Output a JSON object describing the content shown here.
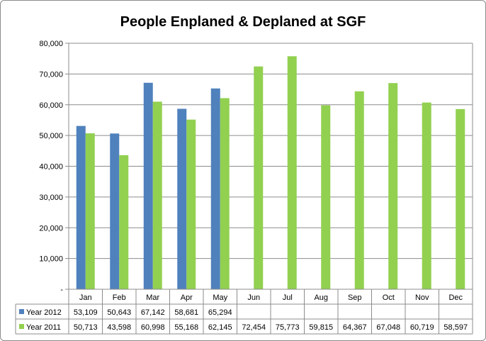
{
  "chart_data": {
    "type": "bar",
    "title": "People Enplaned & Deplaned at SGF",
    "categories": [
      "Jan",
      "Feb",
      "Mar",
      "Apr",
      "May",
      "Jun",
      "Jul",
      "Aug",
      "Sep",
      "Oct",
      "Nov",
      "Dec"
    ],
    "yticks": [
      "-",
      "10,000",
      "20,000",
      "30,000",
      "40,000",
      "50,000",
      "60,000",
      "70,000",
      "80,000"
    ],
    "ylim": [
      0,
      80000
    ],
    "grid": true,
    "legend": "data-table",
    "series": [
      {
        "name": "Year 2012",
        "color": "#4f81bd",
        "values": [
          53109,
          50643,
          67142,
          58681,
          65294,
          null,
          null,
          null,
          null,
          null,
          null,
          null
        ],
        "labels": [
          "53,109",
          "50,643",
          "67,142",
          "58,681",
          "65,294",
          "",
          "",
          "",
          "",
          "",
          "",
          ""
        ]
      },
      {
        "name": "Year 2011",
        "color": "#92d050",
        "values": [
          50713,
          43598,
          60998,
          55168,
          62145,
          72454,
          75773,
          59815,
          64367,
          67048,
          60719,
          58597
        ],
        "labels": [
          "50,713",
          "43,598",
          "60,998",
          "55,168",
          "62,145",
          "72,454",
          "75,773",
          "59,815",
          "64,367",
          "67,048",
          "60,719",
          "58,597"
        ]
      }
    ]
  }
}
